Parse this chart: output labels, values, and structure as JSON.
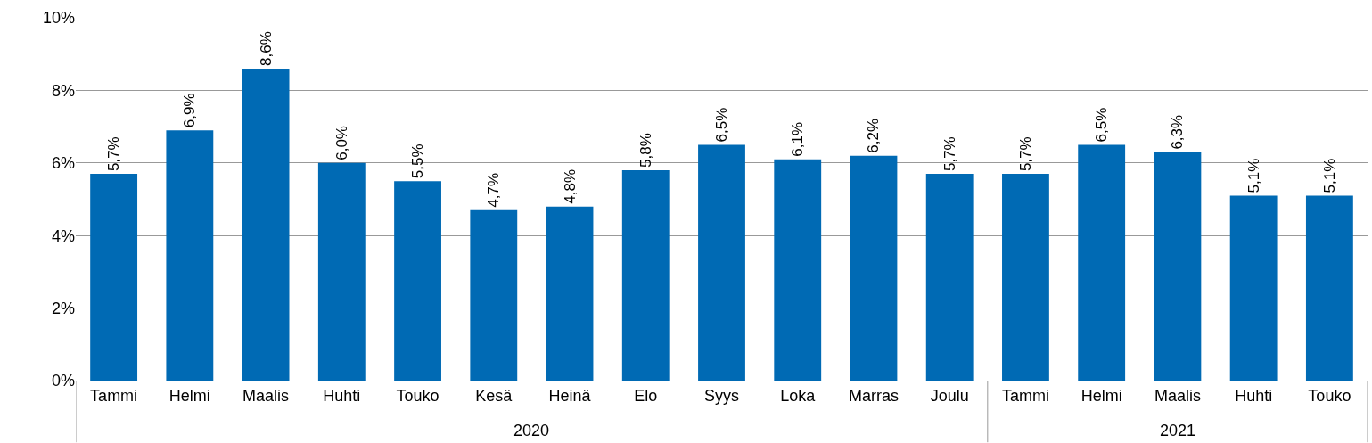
{
  "chart_data": {
    "type": "bar",
    "categories": [
      "Tammi",
      "Helmi",
      "Maalis",
      "Huhti",
      "Touko",
      "Kesä",
      "Heinä",
      "Elo",
      "Syys",
      "Loka",
      "Marras",
      "Joulu",
      "Tammi",
      "Helmi",
      "Maalis",
      "Huhti",
      "Touko"
    ],
    "values": [
      5.7,
      6.9,
      8.6,
      6.0,
      5.5,
      4.7,
      4.8,
      5.8,
      6.5,
      6.1,
      6.2,
      5.7,
      5.7,
      6.5,
      6.3,
      5.1,
      5.1
    ],
    "value_labels": [
      "5,7%",
      "6,9%",
      "8,6%",
      "6,0%",
      "5,5%",
      "4,7%",
      "4,8%",
      "5,8%",
      "6,5%",
      "6,1%",
      "6,2%",
      "5,7%",
      "5,7%",
      "6,5%",
      "6,3%",
      "5,1%",
      "5,1%"
    ],
    "color": "#006ab4",
    "ylim": [
      0,
      10
    ],
    "yticks": [
      {
        "value": 0,
        "label": "0%"
      },
      {
        "value": 2,
        "label": "2%"
      },
      {
        "value": 4,
        "label": "4%"
      },
      {
        "value": 6,
        "label": "6%"
      },
      {
        "value": 8,
        "label": "8%"
      },
      {
        "value": 10,
        "label": "10%"
      }
    ],
    "grid": "y",
    "legend": false,
    "annotations": [
      "2020",
      "2021"
    ]
  }
}
